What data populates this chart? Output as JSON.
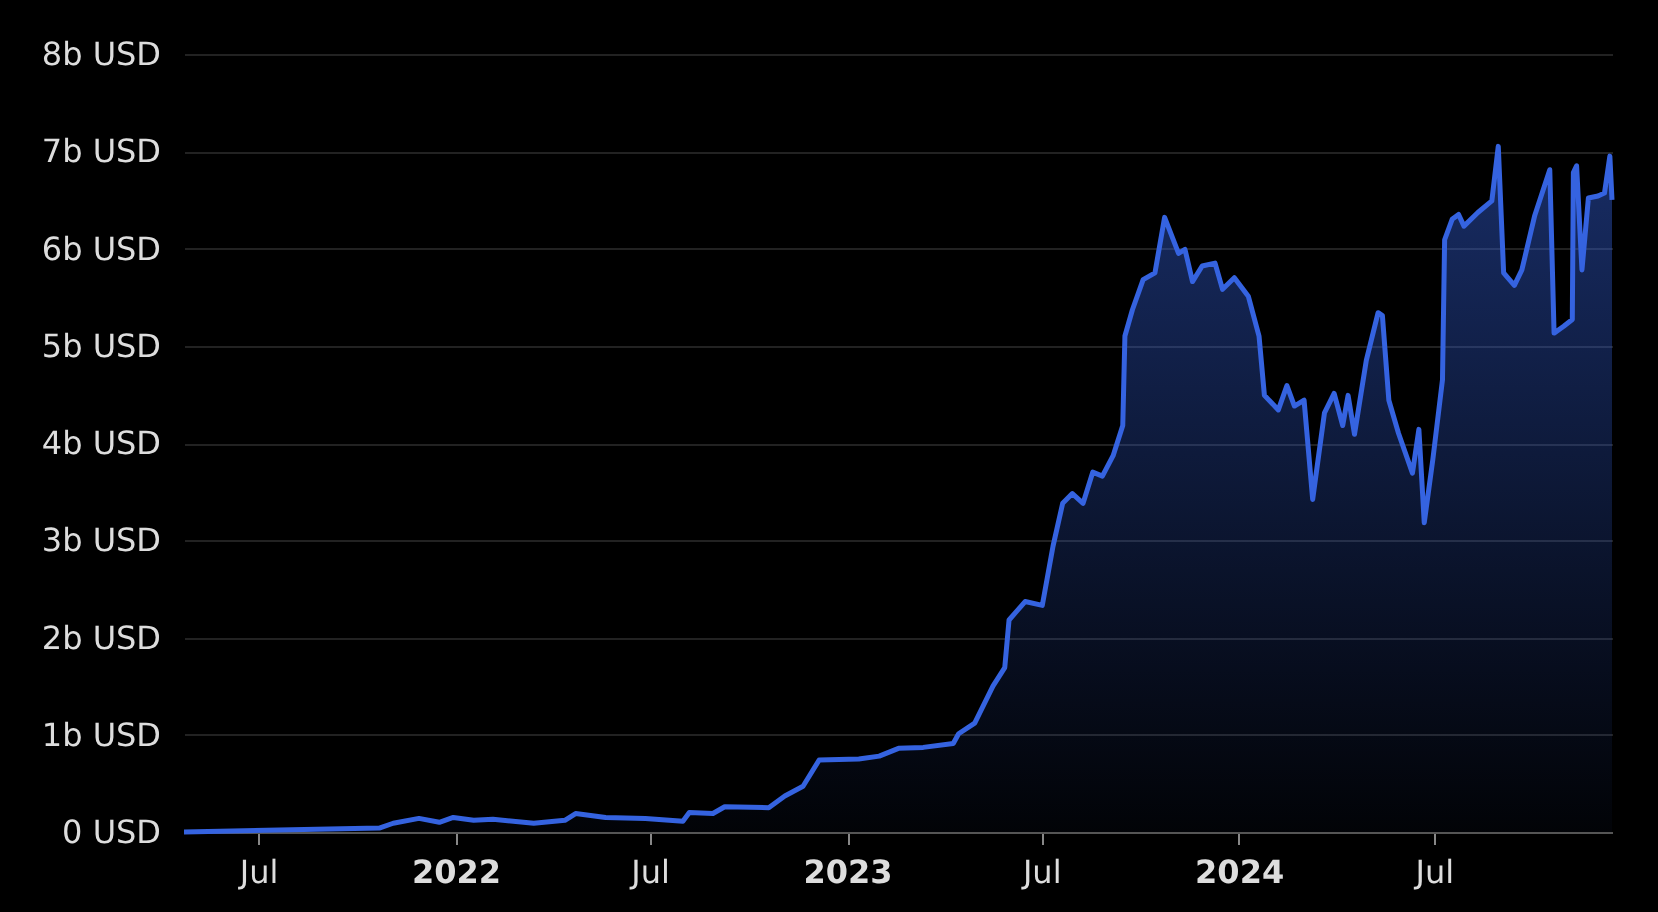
{
  "chart_data": {
    "type": "area",
    "x": [
      "2021-04-23",
      "2021-10-22",
      "2021-11-04",
      "2021-11-28",
      "2021-12-17",
      "2021-12-30",
      "2022-01-18",
      "2022-02-05",
      "2022-03-15",
      "2022-04-13",
      "2022-04-23",
      "2022-05-21",
      "2022-06-27",
      "2022-08-01",
      "2022-08-07",
      "2022-08-29",
      "2022-09-09",
      "2022-10-20",
      "2022-11-04",
      "2022-11-21",
      "2022-12-06",
      "2023-01-12",
      "2023-01-31",
      "2023-02-18",
      "2023-03-13",
      "2023-04-10",
      "2023-04-15",
      "2023-04-30",
      "2023-05-17",
      "2023-05-28",
      "2023-06-01",
      "2023-06-16",
      "2023-07-02",
      "2023-07-12",
      "2023-07-21",
      "2023-07-30",
      "2023-08-09",
      "2023-08-18",
      "2023-08-27",
      "2023-09-06",
      "2023-09-15",
      "2023-09-17",
      "2023-09-24",
      "2023-10-04",
      "2023-10-15",
      "2023-10-24",
      "2023-11-06",
      "2023-11-12",
      "2023-11-19",
      "2023-11-28",
      "2023-12-10",
      "2023-12-17",
      "2023-12-28",
      "2024-01-10",
      "2024-01-20",
      "2024-01-25",
      "2024-02-07",
      "2024-02-15",
      "2024-02-22",
      "2024-03-02",
      "2024-03-10",
      "2024-03-21",
      "2024-03-30",
      "2024-04-07",
      "2024-04-12",
      "2024-04-18",
      "2024-04-29",
      "2024-05-10",
      "2024-05-14",
      "2024-05-20",
      "2024-05-29",
      "2024-06-11",
      "2024-06-17",
      "2024-06-22",
      "2024-06-30",
      "2024-07-09",
      "2024-07-11",
      "2024-07-18",
      "2024-07-24",
      "2024-07-29",
      "2024-08-11",
      "2024-08-24",
      "2024-08-30",
      "2024-09-04",
      "2024-09-14",
      "2024-09-21",
      "2024-10-03",
      "2024-10-17",
      "2024-10-21",
      "2024-10-30",
      "2024-11-07",
      "2024-11-08",
      "2024-11-11",
      "2024-11-16",
      "2024-11-22",
      "2024-12-01",
      "2024-12-07",
      "2024-12-12",
      "2024-12-14"
    ],
    "series": [
      {
        "color": "#3563e0",
        "values": [
          0.0,
          0.04,
          0.09,
          0.14,
          0.1,
          0.15,
          0.12,
          0.13,
          0.09,
          0.12,
          0.19,
          0.15,
          0.14,
          0.11,
          0.2,
          0.19,
          0.26,
          0.25,
          0.37,
          0.47,
          0.74,
          0.75,
          0.78,
          0.86,
          0.87,
          0.91,
          1.01,
          1.12,
          1.5,
          1.69,
          2.18,
          2.37,
          2.33,
          2.94,
          3.38,
          3.48,
          3.38,
          3.7,
          3.66,
          3.87,
          4.18,
          5.1,
          5.37,
          5.68,
          5.75,
          6.32,
          5.95,
          5.99,
          5.66,
          5.82,
          5.85,
          5.58,
          5.7,
          5.51,
          5.1,
          4.49,
          4.34,
          4.59,
          4.38,
          4.44,
          3.42,
          4.31,
          4.51,
          4.18,
          4.49,
          4.09,
          4.85,
          5.34,
          5.31,
          4.44,
          4.1,
          3.69,
          4.14,
          3.18,
          3.83,
          4.65,
          6.09,
          6.3,
          6.35,
          6.23,
          6.37,
          6.49,
          7.05,
          5.75,
          5.62,
          5.78,
          6.34,
          6.81,
          5.13,
          5.2,
          5.27,
          6.78,
          6.85,
          5.78,
          6.52,
          6.54,
          6.57,
          6.95,
          6.5
        ]
      }
    ],
    "xlim": [
      "2021-04-23",
      "2024-12-14"
    ],
    "xticks": [
      {
        "value": "2021-07-01",
        "label": "Jul"
      },
      {
        "value": "2022-01-01",
        "label": "2022"
      },
      {
        "value": "2022-07-01",
        "label": "Jul"
      },
      {
        "value": "2023-01-01",
        "label": "2023"
      },
      {
        "value": "2023-07-01",
        "label": "Jul"
      },
      {
        "value": "2024-01-01",
        "label": "2024"
      },
      {
        "value": "2024-07-01",
        "label": "Jul"
      }
    ],
    "ylim": [
      0,
      8
    ],
    "yticks": [
      {
        "value": 0,
        "label": "0 USD"
      },
      {
        "value": 1,
        "label": "1b USD"
      },
      {
        "value": 2,
        "label": "2b USD"
      },
      {
        "value": 3,
        "label": "3b USD"
      },
      {
        "value": 4,
        "label": "4b USD"
      },
      {
        "value": 5,
        "label": "5b USD"
      },
      {
        "value": 6,
        "label": "6b USD"
      },
      {
        "value": 7,
        "label": "7b USD"
      },
      {
        "value": 8,
        "label": "8b USD"
      }
    ],
    "grid": "y"
  }
}
